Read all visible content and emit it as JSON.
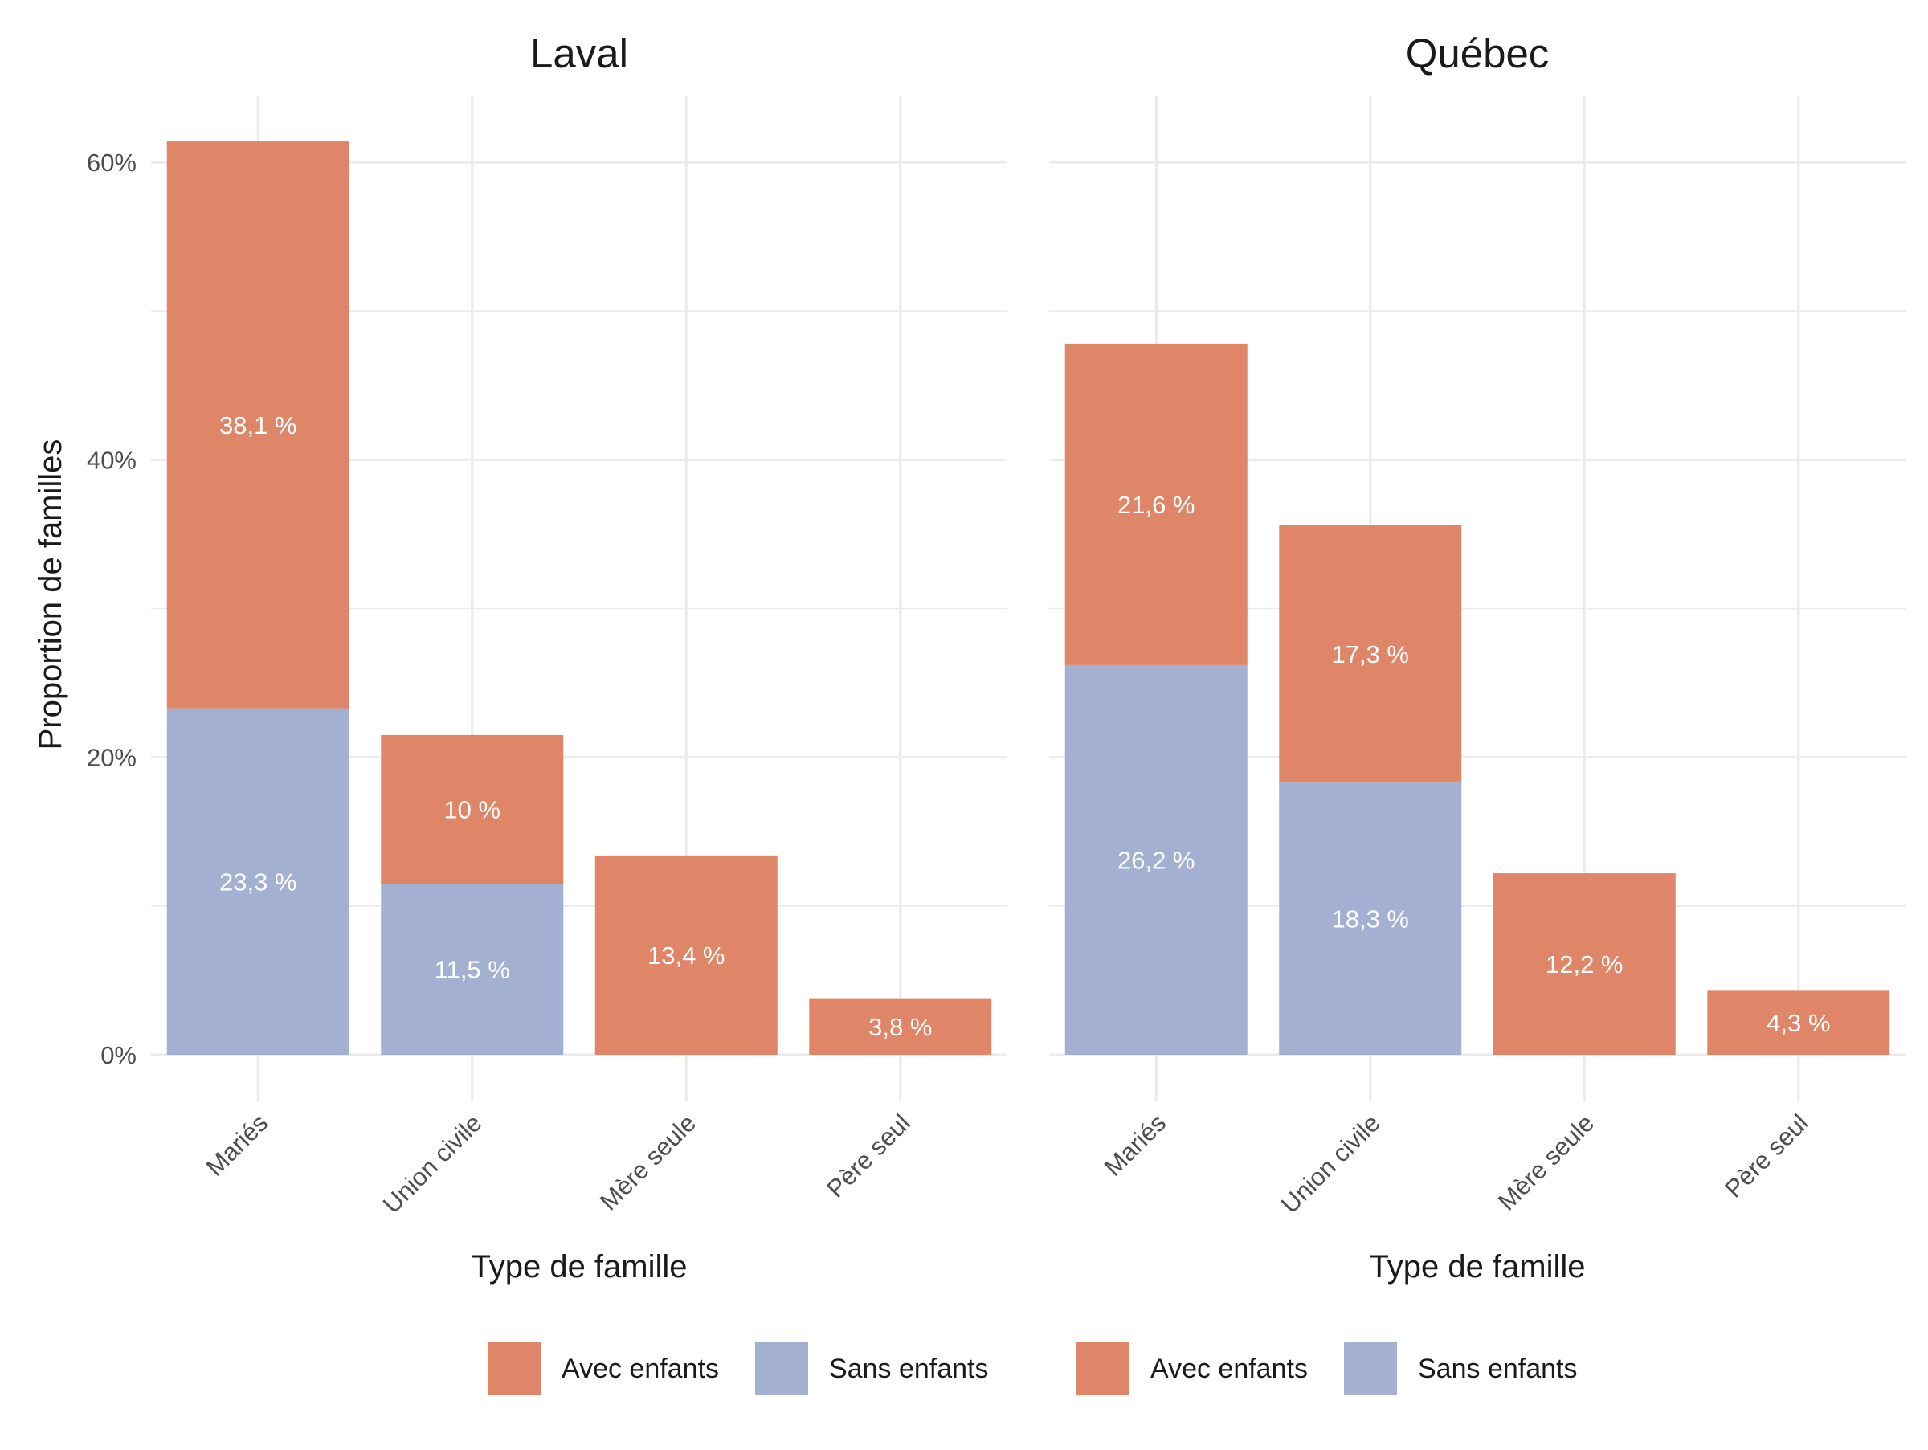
{
  "chart_data": {
    "type": "bar",
    "stacked": true,
    "ylabel": "Proportion de familles",
    "xlabel": "Type de famille",
    "ylim": [
      0,
      65
    ],
    "y_ticks": [
      0,
      20,
      40,
      60
    ],
    "y_tick_labels": [
      "0%",
      "20%",
      "40%",
      "60%"
    ],
    "grid": true,
    "legend_position": "bottom",
    "categories": [
      "Mariés",
      "Union civile",
      "Mère seule",
      "Père seul"
    ],
    "series_colors": {
      "Sans enfants": "#a3b0d1",
      "Avec enfants": "#e08668"
    },
    "legend": [
      {
        "entries": [
          "Avec enfants",
          "Sans enfants"
        ]
      },
      {
        "entries": [
          "Avec enfants",
          "Sans enfants"
        ]
      }
    ],
    "panels": [
      {
        "title": "Laval",
        "series": [
          {
            "name": "Sans enfants",
            "values": [
              23.3,
              11.5,
              null,
              null
            ],
            "labels": [
              "23,3 %",
              "11,5 %",
              "",
              ""
            ]
          },
          {
            "name": "Avec enfants",
            "values": [
              38.1,
              10.0,
              13.4,
              3.8
            ],
            "labels": [
              "38,1 %",
              "10 %",
              "13,4 %",
              "3,8 %"
            ]
          }
        ]
      },
      {
        "title": "Québec",
        "series": [
          {
            "name": "Sans enfants",
            "values": [
              26.2,
              18.3,
              null,
              null
            ],
            "labels": [
              "26,2 %",
              "18,3 %",
              "",
              ""
            ]
          },
          {
            "name": "Avec enfants",
            "values": [
              21.6,
              17.3,
              12.2,
              4.3
            ],
            "labels": [
              "21,6 %",
              "17,3 %",
              "12,2 %",
              "4,3 %"
            ]
          }
        ]
      }
    ]
  }
}
